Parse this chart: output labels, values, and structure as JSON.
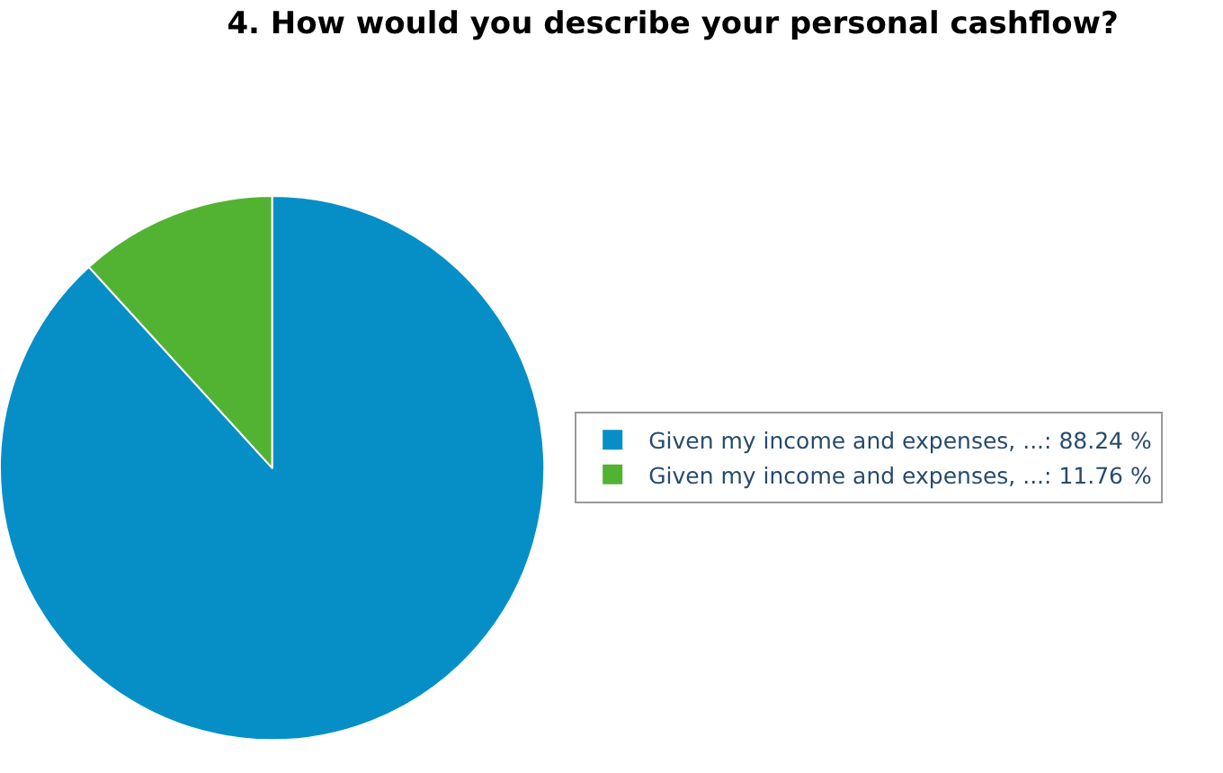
{
  "chart_data": {
    "type": "pie",
    "title": "4. How would you describe your personal cashflow?",
    "categories": [
      "Given my income and expenses, ...: 88.24 %",
      "Given my income and expenses, ...: 11.76 %"
    ],
    "values": [
      88.24,
      11.76
    ],
    "colors": [
      "#068fc6",
      "#52b232"
    ],
    "legend": "right"
  }
}
